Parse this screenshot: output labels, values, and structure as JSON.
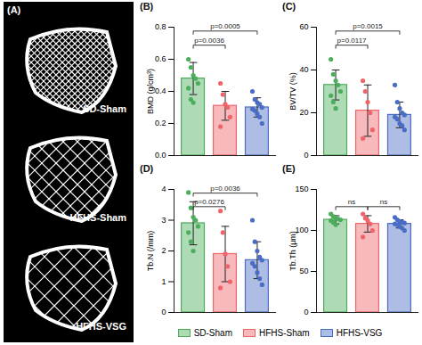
{
  "image_panel": {
    "label": "(A)",
    "images": [
      "SD-Sham",
      "HFHS-Sham",
      "HFHS-VSG"
    ]
  },
  "legend": {
    "position": "bottom",
    "entries": [
      "SD-Sham",
      "HFHS-Sham",
      "HFHS-VSG"
    ],
    "colors": [
      "#4cae5c",
      "#ee6469",
      "#4a6cc4"
    ]
  },
  "chart_data": [
    {
      "type": "bar",
      "title": "(B)",
      "y_label": "BMD (g/cm³)",
      "categories": [
        "SD-Sham",
        "HFHS-Sham",
        "HFHS-VSG"
      ],
      "colors": [
        "#4cae5c",
        "#ee6469",
        "#4a6cc4"
      ],
      "values": [
        0.48,
        0.31,
        0.3
      ],
      "error": [
        0.1,
        0.09,
        0.06
      ],
      "points": [
        [
          0.6,
          0.55,
          0.5,
          0.48,
          0.45,
          0.42,
          0.35,
          0.33
        ],
        [
          0.45,
          0.38,
          0.32,
          0.3,
          0.24,
          0.18
        ],
        [
          0.4,
          0.35,
          0.33,
          0.32,
          0.3,
          0.29,
          0.28,
          0.26,
          0.24,
          0.2
        ]
      ],
      "ylim": [
        0,
        0.8
      ],
      "yticks": [
        {
          "value": 0,
          "label": "0.0"
        },
        {
          "value": 0.2,
          "label": "0.2"
        },
        {
          "value": 0.4,
          "label": "0.4"
        },
        {
          "value": 0.6,
          "label": "0.6"
        },
        {
          "value": 0.8,
          "label": "0.8"
        }
      ],
      "tick_labels": "y",
      "comparisons": [
        {
          "from": "SD-Sham",
          "to": "HFHS-Sham",
          "label": "p=0.0036"
        },
        {
          "from": "SD-Sham",
          "to": "HFHS-VSG",
          "label": "p=0.0005"
        }
      ]
    },
    {
      "type": "bar",
      "title": "(C)",
      "y_label": "BV/TV (%)",
      "categories": [
        "SD-Sham",
        "HFHS-Sham",
        "HFHS-VSG"
      ],
      "colors": [
        "#4cae5c",
        "#ee6469",
        "#4a6cc4"
      ],
      "values": [
        33,
        21,
        19
      ],
      "error": [
        7,
        12,
        6
      ],
      "points": [
        [
          45,
          38,
          35,
          33,
          30,
          28,
          25,
          22
        ],
        [
          35,
          30,
          25,
          20,
          12,
          8
        ],
        [
          33,
          25,
          22,
          20,
          19,
          18,
          17,
          15,
          14,
          12
        ]
      ],
      "ylim": [
        0,
        60
      ],
      "yticks": [
        0,
        20,
        40,
        60
      ],
      "tick_labels": "y",
      "comparisons": [
        {
          "from": "SD-Sham",
          "to": "HFHS-Sham",
          "label": "p=0.0117"
        },
        {
          "from": "SD-Sham",
          "to": "HFHS-VSG",
          "label": "p=0.0015"
        }
      ]
    },
    {
      "type": "bar",
      "title": "(D)",
      "y_label": "Tb.N (/mm)",
      "categories": [
        "SD-Sham",
        "HFHS-Sham",
        "HFHS-VSG"
      ],
      "colors": [
        "#4cae5c",
        "#ee6469",
        "#4a6cc4"
      ],
      "values": [
        2.9,
        1.9,
        1.7
      ],
      "error": [
        0.7,
        0.9,
        0.6
      ],
      "points": [
        [
          3.9,
          3.4,
          3.1,
          3.0,
          2.8,
          2.6,
          2.3,
          2.0
        ],
        [
          3.3,
          2.6,
          1.9,
          1.5,
          1.0,
          0.8
        ],
        [
          3.0,
          2.3,
          2.0,
          1.8,
          1.7,
          1.6,
          1.5,
          1.3,
          1.1,
          0.9
        ]
      ],
      "ylim": [
        0,
        4
      ],
      "yticks": [
        0,
        1,
        2,
        3,
        4
      ],
      "tick_labels": "y",
      "comparisons": [
        {
          "from": "SD-Sham",
          "to": "HFHS-Sham",
          "label": "p=0.0276"
        },
        {
          "from": "SD-Sham",
          "to": "HFHS-VSG",
          "label": "p=0.0036"
        }
      ]
    },
    {
      "type": "bar",
      "title": "(E)",
      "y_label": "Tb.Th (μm)",
      "categories": [
        "SD-Sham",
        "HFHS-Sham",
        "HFHS-VSG"
      ],
      "colors": [
        "#4cae5c",
        "#ee6469",
        "#4a6cc4"
      ],
      "values": [
        113,
        108,
        108
      ],
      "error": [
        5,
        10,
        5
      ],
      "points": [
        [
          120,
          117,
          115,
          114,
          113,
          112,
          110,
          107
        ],
        [
          120,
          115,
          112,
          108,
          100,
          92
        ],
        [
          116,
          113,
          111,
          110,
          109,
          108,
          107,
          105,
          103,
          100
        ]
      ],
      "ylim": [
        0,
        150
      ],
      "yticks": [
        0,
        50,
        100,
        150
      ],
      "tick_labels": "y",
      "comparisons": [
        {
          "from": "SD-Sham",
          "to": "HFHS-Sham",
          "label": "ns"
        },
        {
          "from": "HFHS-Sham",
          "to": "HFHS-VSG",
          "label": "ns"
        }
      ]
    }
  ]
}
